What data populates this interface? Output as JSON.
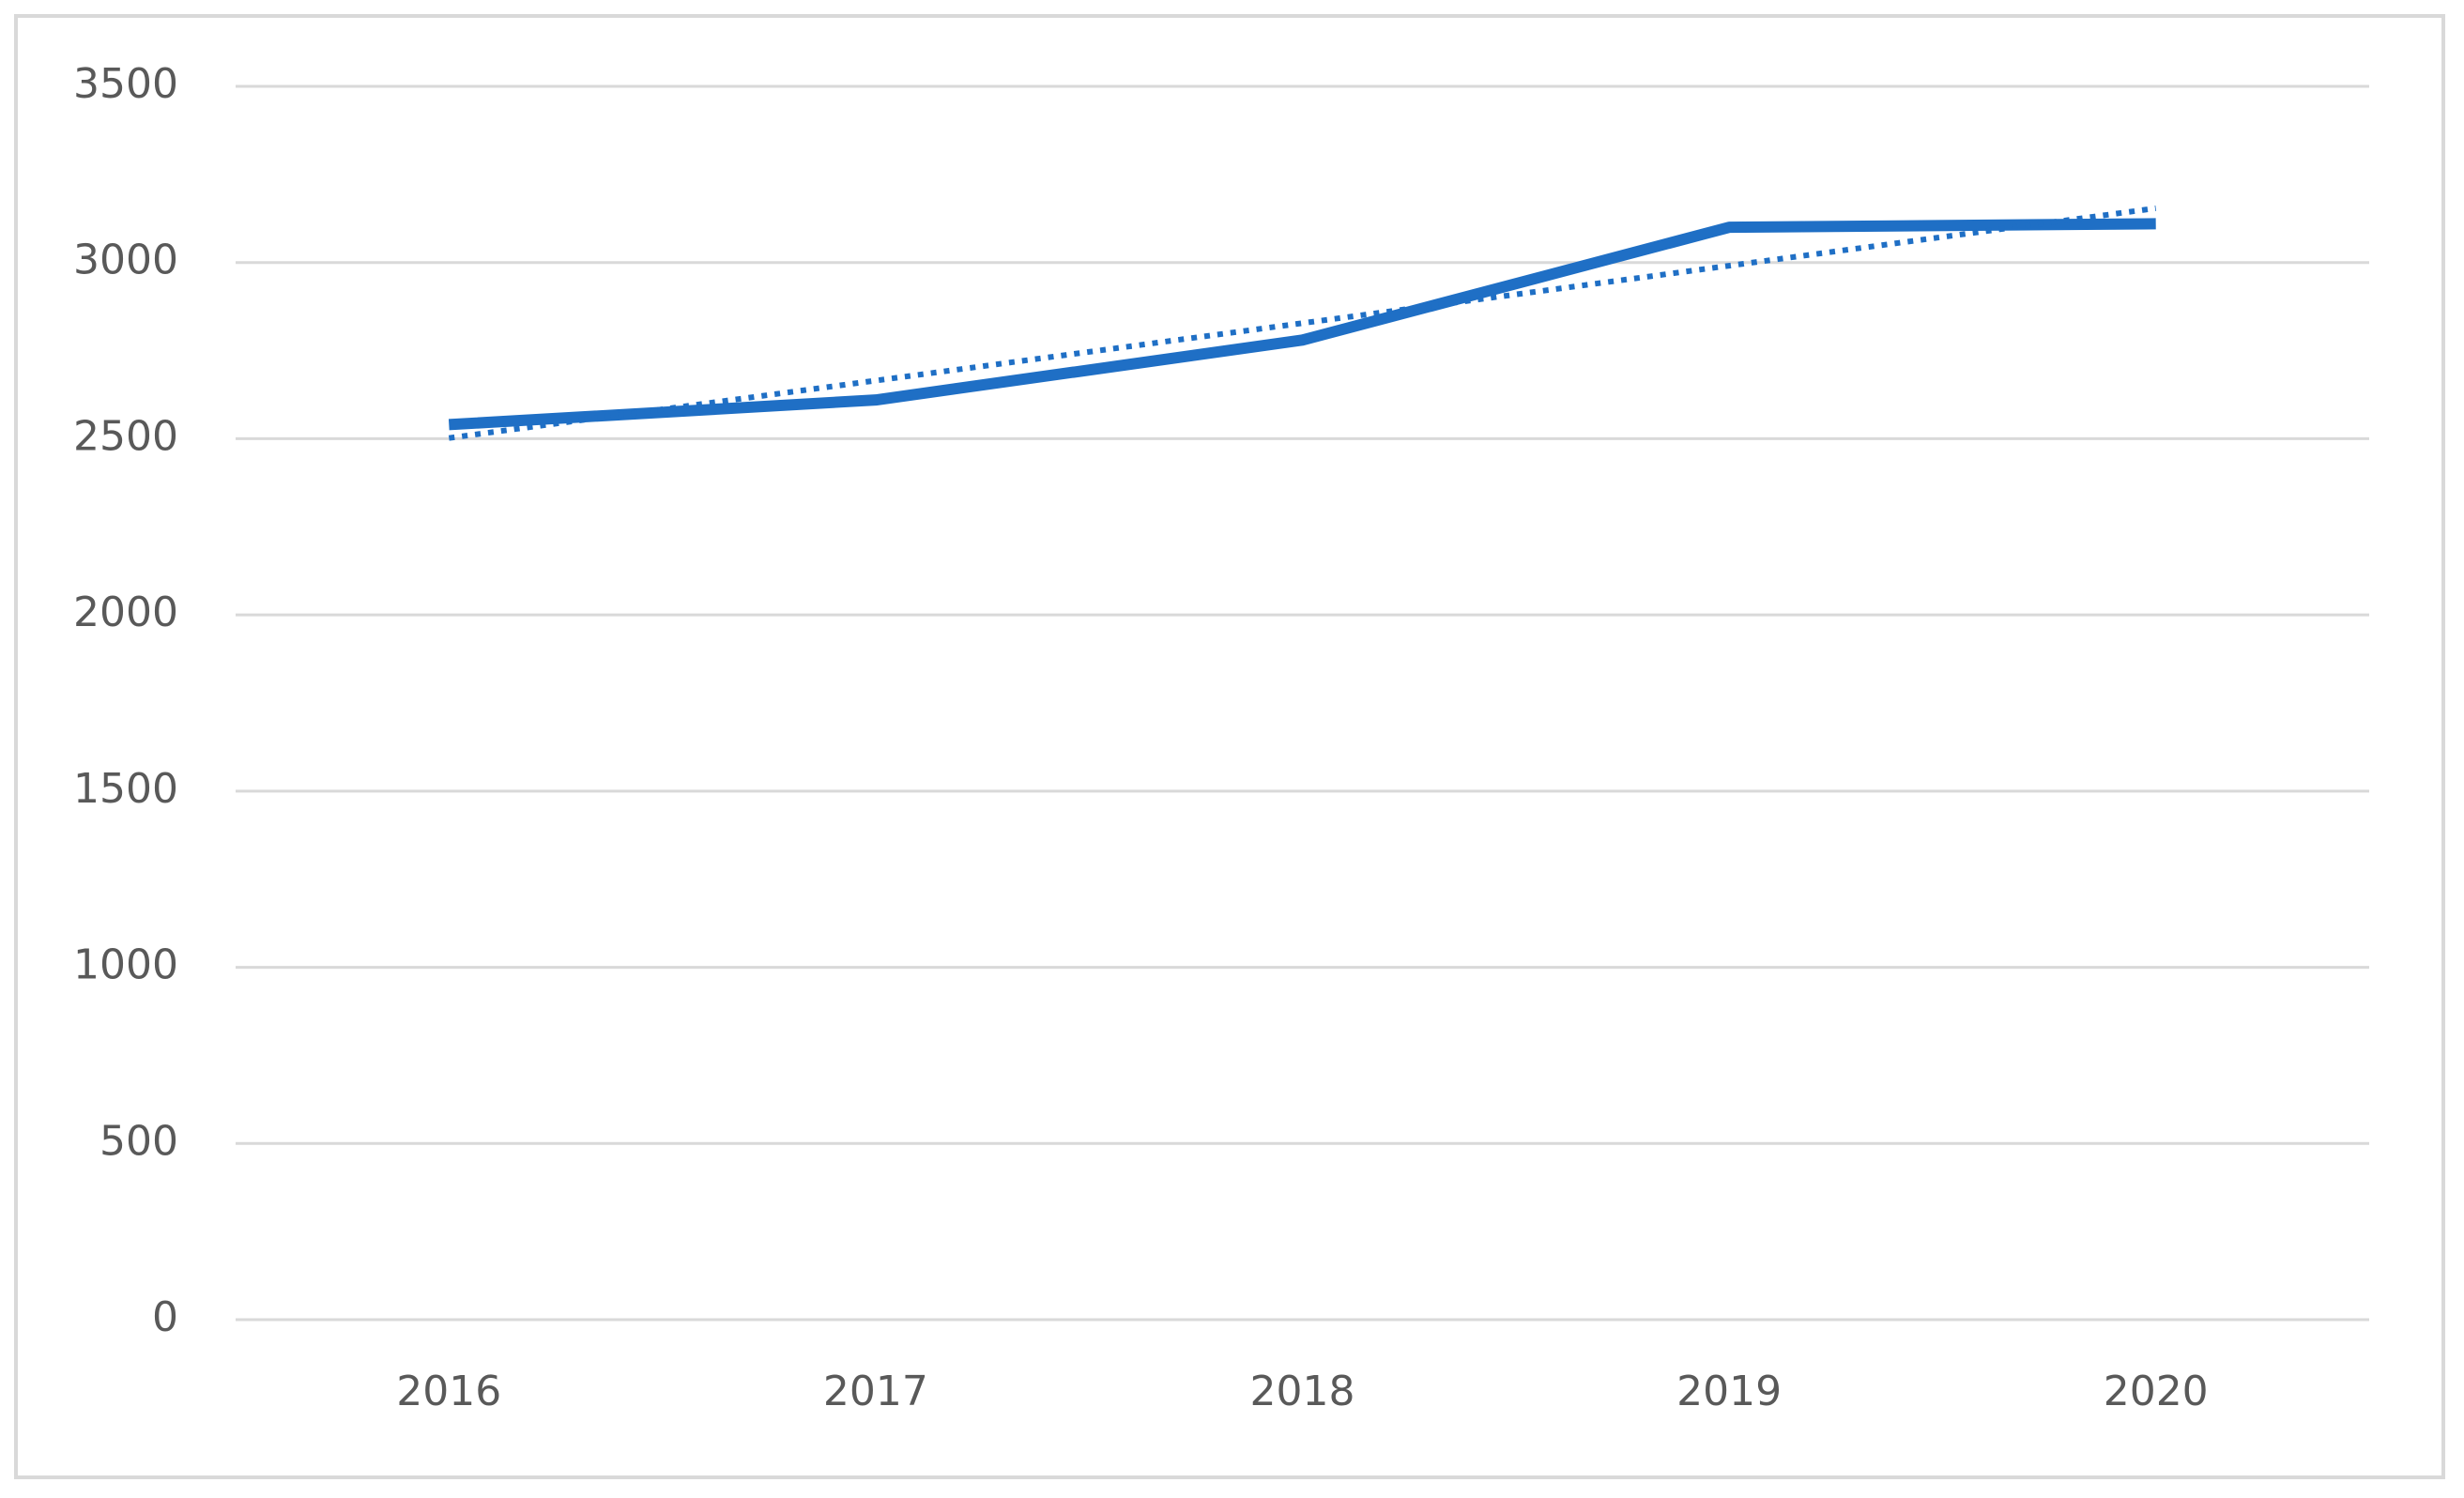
{
  "chart_data": {
    "type": "line",
    "categories": [
      "2016",
      "2017",
      "2018",
      "2019",
      "2020"
    ],
    "series": [
      {
        "color": "#1f6fc5",
        "style": "solid",
        "values": [
          2540,
          2610,
          2780,
          3100,
          3110
        ]
      },
      {
        "color": "#1f6fc5",
        "style": "dotted",
        "values": [
          2502,
          2665,
          2828,
          2991,
          3154
        ]
      }
    ],
    "ylim": [
      0,
      3500
    ],
    "yticks": [
      0,
      500,
      1000,
      1500,
      2000,
      2500,
      3000,
      3500
    ],
    "grid": true
  }
}
